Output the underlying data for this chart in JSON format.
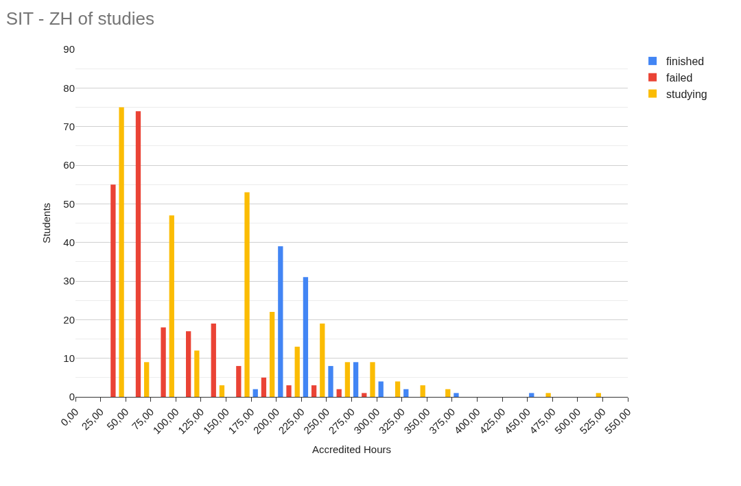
{
  "chart_data": {
    "type": "bar",
    "title": "SIT - ZH of studies",
    "xlabel": "Accredited Hours",
    "ylabel": "Students",
    "x": [
      37.5,
      62.5,
      87.5,
      112.5,
      137.5,
      162.5,
      187.5,
      212.5,
      237.5,
      262.5,
      287.5,
      312.5,
      337.5,
      362.5,
      387.5,
      412.5,
      437.5,
      462.5,
      487.5,
      512.5
    ],
    "series": [
      {
        "name": "finished",
        "color": "#4285f4",
        "values": [
          0,
          0,
          0,
          0,
          0,
          0,
          2,
          39,
          31,
          8,
          9,
          4,
          2,
          0,
          1,
          0,
          0,
          1,
          0,
          0
        ]
      },
      {
        "name": "failed",
        "color": "#ea4335",
        "values": [
          55,
          74,
          18,
          17,
          19,
          8,
          5,
          3,
          3,
          2,
          1,
          0,
          0,
          0,
          0,
          0,
          0,
          0,
          0,
          0
        ]
      },
      {
        "name": "studying",
        "color": "#fbbc04",
        "values": [
          75,
          9,
          47,
          12,
          3,
          53,
          22,
          13,
          19,
          9,
          9,
          4,
          3,
          2,
          0,
          0,
          0,
          1,
          0,
          1
        ]
      }
    ],
    "xlim": [
      0,
      550
    ],
    "xticks": [
      {
        "value": 0,
        "label": "0,00"
      },
      {
        "value": 25,
        "label": "25,00"
      },
      {
        "value": 50,
        "label": "50,00"
      },
      {
        "value": 75,
        "label": "75,00"
      },
      {
        "value": 100,
        "label": "100,00"
      },
      {
        "value": 125,
        "label": "125,00"
      },
      {
        "value": 150,
        "label": "150,00"
      },
      {
        "value": 175,
        "label": "175,00"
      },
      {
        "value": 200,
        "label": "200,00"
      },
      {
        "value": 225,
        "label": "225,00"
      },
      {
        "value": 250,
        "label": "250,00"
      },
      {
        "value": 275,
        "label": "275,00"
      },
      {
        "value": 300,
        "label": "300,00"
      },
      {
        "value": 325,
        "label": "325,00"
      },
      {
        "value": 350,
        "label": "350,00"
      },
      {
        "value": 375,
        "label": "375,00"
      },
      {
        "value": 400,
        "label": "400,00"
      },
      {
        "value": 425,
        "label": "425,00"
      },
      {
        "value": 450,
        "label": "450,00"
      },
      {
        "value": 475,
        "label": "475,00"
      },
      {
        "value": 500,
        "label": "500,00"
      },
      {
        "value": 525,
        "label": "525,00"
      },
      {
        "value": 550,
        "label": "550,00"
      }
    ],
    "ylim": [
      0,
      90
    ],
    "yticks": [
      0,
      {
        "value": 5,
        "label": null
      },
      10,
      {
        "value": 15,
        "label": null
      },
      20,
      {
        "value": 25,
        "label": null
      },
      30,
      {
        "value": 35,
        "label": null
      },
      40,
      {
        "value": 45,
        "label": null
      },
      50,
      {
        "value": 55,
        "label": null
      },
      60,
      {
        "value": 65,
        "label": null
      },
      70,
      {
        "value": 75,
        "label": null
      },
      80,
      {
        "value": 85,
        "label": null
      },
      90
    ],
    "grid": "y",
    "legend": "top right"
  }
}
